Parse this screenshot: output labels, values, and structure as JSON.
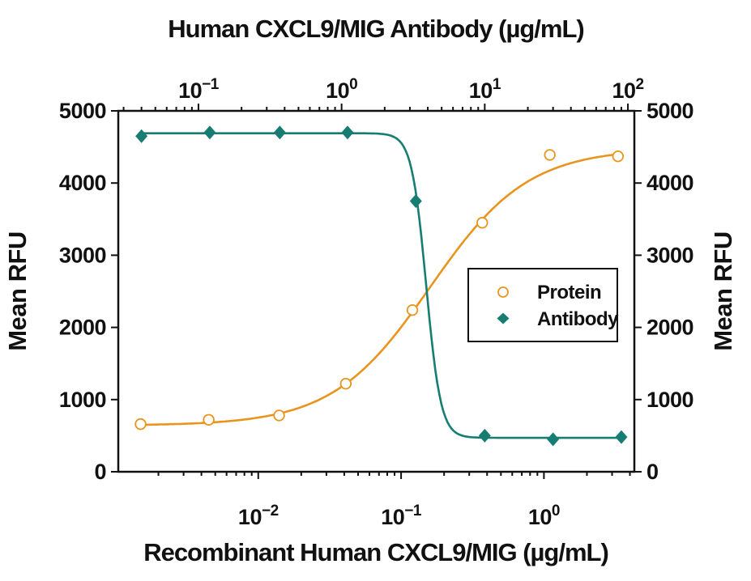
{
  "figure": {
    "background": "#FFFFFF",
    "axis_color": "#111111"
  },
  "chart_data": {
    "type": "line",
    "subtype": "dose-response scatter with 4PL fit curves and dual logarithmic x-axes",
    "top_axis": {
      "title": "Human CXCL9/MIG Antibody (µg/mL)",
      "scale": "log10",
      "ticks": [
        0.1,
        1,
        10,
        100
      ],
      "range_log10": [
        -1.56,
        2.045
      ]
    },
    "bottom_axis": {
      "title": "Recombinant Human CXCL9/MIG (µg/mL)",
      "scale": "log10",
      "ticks": [
        0.01,
        0.1,
        1
      ],
      "range_log10": [
        -2.98,
        0.633
      ]
    },
    "left_axis": {
      "title": "Mean RFU",
      "ticks": [
        0,
        1000,
        2000,
        3000,
        4000,
        5000
      ]
    },
    "right_axis": {
      "title": "Mean RFU",
      "ticks": [
        0,
        1000,
        2000,
        3000,
        4000,
        5000
      ]
    },
    "y_range": [
      0,
      5000
    ],
    "grid": false,
    "legend": {
      "position": "center-right",
      "items": [
        "Protein",
        "Antibody"
      ]
    },
    "series": [
      {
        "name": "Protein",
        "axis": "bottom",
        "marker": "open-circle",
        "color": "#E8941E",
        "x": [
          0.0015,
          0.0045,
          0.014,
          0.041,
          0.12,
          0.37,
          1.1,
          3.3
        ],
        "y": [
          660,
          720,
          780,
          1220,
          2240,
          3450,
          4390,
          4370
        ],
        "fit_4pl": {
          "bottom": 640,
          "top": 4480,
          "ec50": 0.16,
          "hill": 1.27,
          "direction": "increasing"
        }
      },
      {
        "name": "Antibody",
        "axis": "top",
        "marker": "filled-diamond",
        "color": "#177D72",
        "x": [
          0.04,
          0.12,
          0.37,
          1.1,
          3.3,
          10,
          30,
          90
        ],
        "y": [
          4650,
          4700,
          4700,
          4700,
          3750,
          500,
          450,
          480
        ],
        "fit_4pl": {
          "bottom": 470,
          "top": 4690,
          "ec50": 3.9,
          "hill": 8.5,
          "direction": "decreasing"
        }
      }
    ]
  }
}
